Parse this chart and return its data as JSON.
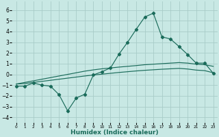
{
  "xlabel": "Humidex (Indice chaleur)",
  "bg_color": "#c8e8e4",
  "grid_color": "#a8ccc8",
  "line_color": "#1a6b5a",
  "xlim": [
    -0.5,
    23.5
  ],
  "ylim": [
    -4.5,
    6.8
  ],
  "xticks": [
    0,
    1,
    2,
    3,
    4,
    5,
    6,
    7,
    8,
    9,
    10,
    11,
    12,
    13,
    14,
    15,
    16,
    17,
    18,
    19,
    20,
    21,
    22,
    23
  ],
  "yticks": [
    -4,
    -3,
    -2,
    -1,
    0,
    1,
    2,
    3,
    4,
    5,
    6
  ],
  "curve1_x": [
    0,
    1,
    2,
    3,
    4,
    5,
    6,
    7,
    8,
    9,
    10,
    11,
    12,
    13,
    14,
    15,
    16,
    17,
    18,
    19,
    20,
    21,
    22,
    23
  ],
  "curve1_y": [
    -1.1,
    -1.1,
    -0.8,
    -1.0,
    -1.1,
    -1.9,
    -3.4,
    -2.2,
    -1.85,
    -0.05,
    0.25,
    0.6,
    1.9,
    3.0,
    4.2,
    5.35,
    5.7,
    3.5,
    3.3,
    2.6,
    1.85,
    1.05,
    1.05,
    0.1
  ],
  "curve2_x": [
    0,
    1,
    2,
    3,
    4,
    5,
    6,
    7,
    8,
    9,
    10,
    11,
    12,
    13,
    14,
    15,
    16,
    17,
    18,
    19,
    20,
    21,
    22,
    23
  ],
  "curve2_y": [
    -0.9,
    -0.75,
    -0.6,
    -0.45,
    -0.3,
    -0.15,
    0.0,
    0.15,
    0.3,
    0.42,
    0.52,
    0.6,
    0.68,
    0.75,
    0.82,
    0.9,
    0.95,
    1.0,
    1.05,
    1.1,
    1.05,
    0.95,
    0.9,
    0.75
  ],
  "curve3_x": [
    0,
    1,
    2,
    3,
    4,
    5,
    6,
    7,
    8,
    9,
    10,
    11,
    12,
    13,
    14,
    15,
    16,
    17,
    18,
    19,
    20,
    21,
    22,
    23
  ],
  "curve3_y": [
    -0.9,
    -0.85,
    -0.75,
    -0.65,
    -0.55,
    -0.45,
    -0.35,
    -0.25,
    -0.15,
    -0.06,
    0.02,
    0.1,
    0.18,
    0.25,
    0.32,
    0.38,
    0.43,
    0.48,
    0.52,
    0.56,
    0.5,
    0.4,
    0.35,
    0.15
  ]
}
